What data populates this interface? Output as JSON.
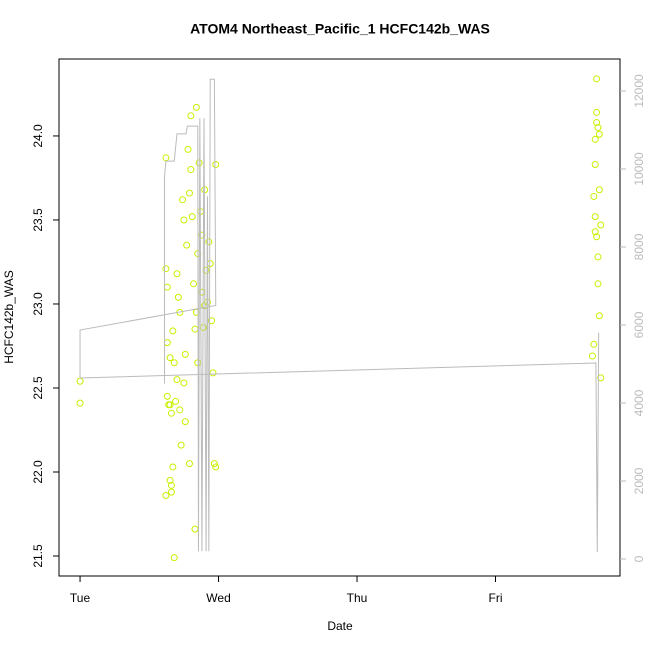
{
  "chart_data": {
    "type": "scatter",
    "title": "ATOM4 Northeast_Pacific_1 HCFC142b_WAS",
    "x_label": "Date",
    "y_label": "HCFC142b_WAS",
    "xlim": [
      -0.152,
      3.899
    ],
    "xticks": [
      {
        "value": 0,
        "label": "Tue"
      },
      {
        "value": 1,
        "label": "Wed"
      },
      {
        "value": 2,
        "label": "Thu"
      },
      {
        "value": 3,
        "label": "Fri"
      }
    ],
    "ylim": [
      21.381,
      24.458
    ],
    "yticks": [
      21.5,
      {
        "value": 22,
        "label": "22.0"
      },
      22.5,
      {
        "value": 23,
        "label": "23.0"
      },
      23.5,
      {
        "value": 24,
        "label": "24.0"
      }
    ],
    "y2lim": [
      -436,
      12820
    ],
    "y2ticks": [
      0,
      2000,
      4000,
      6000,
      8000,
      10000,
      12000
    ],
    "series": [
      {
        "type": "scatter",
        "color": "#c8f000",
        "x": [
          0.0,
          0.0,
          0.62,
          0.62,
          0.63,
          0.63,
          0.63,
          0.62,
          0.64,
          0.65,
          0.65,
          0.66,
          0.65,
          0.66,
          0.66,
          0.67,
          0.68,
          0.67,
          0.68,
          0.69,
          0.7,
          0.71,
          0.7,
          0.72,
          0.73,
          0.74,
          0.75,
          0.75,
          0.76,
          0.77,
          0.78,
          0.79,
          0.8,
          0.8,
          0.81,
          0.82,
          0.83,
          0.84,
          0.85,
          0.85,
          0.86,
          0.87,
          0.88,
          0.88,
          0.89,
          0.9,
          0.91,
          0.92,
          0.93,
          0.94,
          0.95,
          0.96,
          0.97,
          0.98,
          0.98,
          0.72,
          0.76,
          0.79,
          0.83,
          0.84,
          0.9,
          3.7,
          3.71,
          3.71,
          3.72,
          3.72,
          3.72,
          3.73,
          3.73,
          3.73,
          3.74,
          3.74,
          3.74,
          3.75,
          3.75,
          3.75,
          3.76,
          3.76,
          3.72,
          3.73
        ],
        "values": [
          22.54,
          22.41,
          23.87,
          23.21,
          23.1,
          22.77,
          22.45,
          21.86,
          22.4,
          22.68,
          22.4,
          22.35,
          21.95,
          21.88,
          21.92,
          22.03,
          21.49,
          22.84,
          22.65,
          22.42,
          22.55,
          23.04,
          23.18,
          22.37,
          22.16,
          23.62,
          23.5,
          22.53,
          22.3,
          23.35,
          23.92,
          23.66,
          24.12,
          23.8,
          23.52,
          23.12,
          22.85,
          22.95,
          23.3,
          22.65,
          23.84,
          23.55,
          23.41,
          23.07,
          22.86,
          23.68,
          23.2,
          23.01,
          23.37,
          23.24,
          22.9,
          22.59,
          22.05,
          22.03,
          23.83,
          22.95,
          22.7,
          22.05,
          21.66,
          24.17,
          22.99,
          22.69,
          22.76,
          23.64,
          23.83,
          23.52,
          23.98,
          24.34,
          24.14,
          23.4,
          24.05,
          23.28,
          23.12,
          22.93,
          23.68,
          24.01,
          23.47,
          22.56,
          23.43,
          24.08
        ]
      },
      {
        "type": "line",
        "axis": "y2",
        "color": "#bbbbbb",
        "x": [
          3.745,
          3.735,
          3.725,
          0,
          0,
          0.98,
          0.97,
          0.94,
          0.93,
          0.92,
          0.91,
          0.895,
          0.88,
          0.865,
          0.855,
          0.85,
          0.775,
          0.765,
          0.7,
          0.68,
          0.62,
          0.61,
          0.61
        ],
        "values": [
          5800,
          180,
          5026,
          4640,
          5870,
          6500,
          12300,
          12300,
          200,
          9300,
          200,
          11300,
          200,
          11300,
          200,
          11100,
          11100,
          10900,
          10900,
          10200,
          10200,
          9800,
          4500
        ]
      }
    ]
  }
}
